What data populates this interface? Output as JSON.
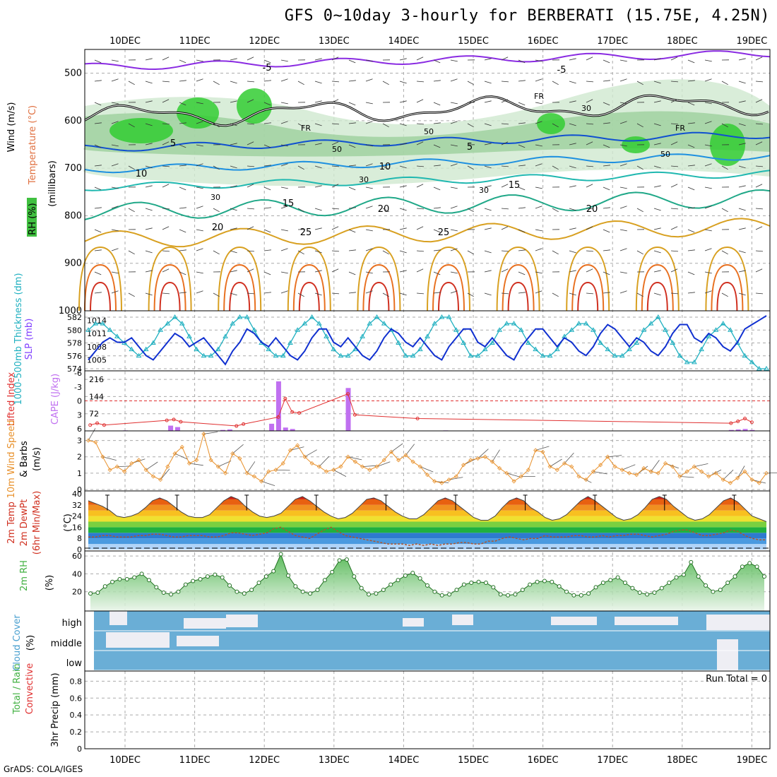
{
  "header": {
    "title": "GFS 0~10day 3-hourly for BERBERATI (15.75E, 4.25N)",
    "credit": "GrADS: COLA/IGES"
  },
  "colors": {
    "temp_line": "#f08a24",
    "dewpoint_line": "#b0552a",
    "wind_speed": "#e8902a",
    "cape_bar": "#c070f0",
    "lifted_index": "#e03030",
    "thickness": "#20b0c0",
    "slp": "#1030d0",
    "rh_green": "#40b040",
    "cloud_blue": "#6aaed6"
  },
  "chart_data": [
    {
      "panel": "cross-section",
      "type": "heatmap",
      "x_dates": [
        "10DEC",
        "11DEC",
        "12DEC",
        "13DEC",
        "14DEC",
        "15DEC",
        "16DEC",
        "17DEC",
        "18DEC",
        "19DEC"
      ],
      "ylabel": "(millibars)",
      "ylim": [
        1000,
        450
      ],
      "yticks": [
        500,
        600,
        700,
        800,
        900,
        1000
      ],
      "legend_labels": [
        "RH (%)",
        "Temperature (°C)",
        "Wind (m/s)"
      ],
      "isotherm_labels": [
        "-5",
        "5",
        "10",
        "15",
        "20",
        "25"
      ],
      "rh_labels": [
        "30",
        "50"
      ],
      "freezing_label": "FR"
    },
    {
      "panel": "thickness-slp",
      "type": "line",
      "legend_labels": [
        "1000-500mb Thickness (dm)",
        "SLP (mb)"
      ],
      "left_ticks": [
        "582",
        "580",
        "578",
        "576",
        "574"
      ],
      "right_ticks": [
        "1014",
        "1011",
        "1008",
        "1005"
      ],
      "series": [
        {
          "name": "Thickness",
          "values": [
            580,
            581,
            581,
            580,
            579,
            578,
            577,
            576,
            577,
            578,
            580,
            581,
            582,
            581,
            579,
            577,
            576,
            576,
            577,
            579,
            581,
            582,
            582,
            580,
            578,
            577,
            576,
            576,
            578,
            580,
            581,
            582,
            581,
            579,
            577,
            576,
            576,
            577,
            579,
            581,
            582,
            581,
            580,
            578,
            576,
            576,
            577,
            579,
            581,
            582,
            582,
            580,
            578,
            576,
            576,
            577,
            578,
            580,
            581,
            581,
            580,
            578,
            577,
            576,
            576,
            577,
            579,
            580,
            581,
            581,
            580,
            578,
            577,
            576,
            576,
            577,
            578,
            580,
            581,
            582,
            580,
            578,
            576,
            575,
            575,
            577,
            579,
            580,
            581,
            580,
            578,
            576,
            575,
            574,
            574
          ]
        },
        {
          "name": "SLP",
          "values": [
            1005,
            1007,
            1009,
            1010,
            1009,
            1009,
            1010,
            1008,
            1006,
            1005,
            1007,
            1009,
            1011,
            1010,
            1008,
            1009,
            1010,
            1008,
            1006,
            1004,
            1007,
            1009,
            1012,
            1011,
            1009,
            1008,
            1010,
            1008,
            1006,
            1005,
            1007,
            1010,
            1012,
            1012,
            1009,
            1008,
            1010,
            1008,
            1006,
            1005,
            1007,
            1010,
            1012,
            1011,
            1009,
            1008,
            1010,
            1008,
            1006,
            1005,
            1008,
            1010,
            1012,
            1012,
            1009,
            1008,
            1010,
            1008,
            1006,
            1005,
            1008,
            1010,
            1012,
            1012,
            1010,
            1008,
            1010,
            1009,
            1007,
            1006,
            1008,
            1011,
            1013,
            1012,
            1010,
            1008,
            1010,
            1009,
            1007,
            1006,
            1008,
            1011,
            1013,
            1013,
            1010,
            1009,
            1011,
            1010,
            1008,
            1007,
            1009,
            1012,
            1013,
            1014,
            1015
          ]
        }
      ]
    },
    {
      "panel": "stability",
      "type": "bar",
      "legend_labels": [
        "Lifted Index",
        "CAPE (J/kg)"
      ],
      "li_ticks": [
        "-6",
        "-3",
        "0",
        "3",
        "6"
      ],
      "cape_ticks": [
        "216",
        "144",
        "72"
      ],
      "cape_bars": [
        [
          0.5,
          2
        ],
        [
          1.15,
          22
        ],
        [
          1.25,
          16
        ],
        [
          1.9,
          4
        ],
        [
          2.0,
          6
        ],
        [
          2.6,
          30
        ],
        [
          2.7,
          208
        ],
        [
          2.8,
          14
        ],
        [
          2.9,
          8
        ],
        [
          3.7,
          180
        ],
        [
          5.1,
          2
        ],
        [
          9.2,
          4
        ],
        [
          9.3,
          6
        ],
        [
          9.4,
          8
        ],
        [
          9.5,
          4
        ]
      ],
      "li_points": [
        [
          0.0,
          5.2
        ],
        [
          0.1,
          4.8
        ],
        [
          0.2,
          5.2
        ],
        [
          1.1,
          4.2
        ],
        [
          1.2,
          4.0
        ],
        [
          1.3,
          4.5
        ],
        [
          2.1,
          5.4
        ],
        [
          2.2,
          5.0
        ],
        [
          2.7,
          3.5
        ],
        [
          2.8,
          -0.5
        ],
        [
          2.9,
          2.4
        ],
        [
          3.0,
          2.6
        ],
        [
          3.7,
          -1.5
        ],
        [
          3.8,
          3.0
        ],
        [
          4.7,
          3.8
        ],
        [
          9.2,
          4.8
        ],
        [
          9.3,
          4.4
        ],
        [
          9.4,
          3.8
        ],
        [
          9.5,
          4.6
        ]
      ]
    },
    {
      "panel": "wind",
      "type": "line",
      "legend_labels": [
        "10m Wind Speed",
        "& Barbs",
        "(m/s)"
      ],
      "yticks": [
        "0",
        "1",
        "2",
        "3"
      ],
      "series": [
        {
          "name": "Speed",
          "values": [
            3.0,
            2.9,
            2.0,
            1.2,
            1.4,
            1.1,
            1.6,
            1.8,
            1.2,
            0.8,
            0.6,
            1.4,
            2.2,
            2.6,
            1.6,
            1.8,
            3.4,
            1.8,
            1.4,
            1.0,
            2.2,
            1.9,
            1.0,
            0.8,
            0.5,
            1.1,
            1.2,
            1.6,
            2.4,
            2.7,
            2.0,
            1.6,
            1.4,
            1.1,
            1.2,
            1.4,
            2.0,
            1.7,
            1.4,
            1.2,
            1.4,
            1.8,
            2.3,
            1.8,
            2.1,
            1.7,
            1.4,
            0.9,
            0.5,
            0.4,
            0.6,
            0.8,
            1.5,
            1.8,
            1.9,
            2.0,
            1.7,
            1.3,
            1.0,
            0.5,
            0.8,
            1.2,
            2.4,
            2.3,
            1.4,
            1.2,
            1.6,
            1.4,
            0.8,
            0.6,
            1.1,
            1.5,
            2.0,
            1.4,
            1.2,
            1.0,
            0.9,
            1.3,
            1.1,
            1.0,
            1.6,
            1.4,
            0.8,
            1.1,
            1.4,
            1.1,
            0.8,
            1.0,
            0.6,
            0.4,
            0.7,
            1.1,
            0.6,
            0.4,
            1.0
          ]
        }
      ]
    },
    {
      "panel": "temperature",
      "type": "area",
      "legend_labels": [
        "2m Temp",
        "2m DewPt",
        "(6hr Min/Max)",
        "(°C)"
      ],
      "yticks": [
        "40",
        "32",
        "24",
        "16",
        "8",
        "0"
      ],
      "series": [
        {
          "name": "Temp",
          "values": [
            35,
            33,
            31,
            28,
            24,
            23,
            24,
            26,
            30,
            35,
            37,
            35,
            31,
            27,
            24,
            23,
            23,
            25,
            30,
            35,
            38,
            36,
            31,
            27,
            24,
            23,
            24,
            26,
            31,
            36,
            38,
            35,
            31,
            27,
            24,
            22,
            23,
            26,
            31,
            36,
            37,
            35,
            31,
            27,
            24,
            22,
            22,
            25,
            30,
            35,
            37,
            35,
            31,
            27,
            23,
            21,
            21,
            24,
            30,
            35,
            37,
            35,
            30,
            27,
            23,
            21,
            22,
            25,
            30,
            35,
            38,
            35,
            31,
            27,
            23,
            21,
            22,
            25,
            30,
            36,
            38,
            36,
            31,
            27,
            23,
            21,
            22,
            25,
            30,
            35,
            37,
            34,
            29,
            24,
            22,
            20
          ]
        },
        {
          "name": "DewPt",
          "values": [
            9,
            9,
            10,
            10,
            9,
            9,
            9,
            10,
            10,
            11,
            11,
            10,
            9,
            9,
            10,
            10,
            10,
            9,
            9,
            10,
            12,
            12,
            11,
            10,
            11,
            12,
            15,
            16,
            13,
            10,
            9,
            8,
            11,
            14,
            16,
            13,
            10,
            9,
            8,
            7,
            6,
            5,
            4,
            4,
            4,
            3,
            4,
            3,
            4,
            3,
            4,
            4,
            5,
            5,
            4,
            4,
            6,
            6,
            8,
            9,
            8,
            7,
            8,
            8,
            10,
            9,
            9,
            9,
            10,
            10,
            9,
            9,
            10,
            9,
            10,
            10,
            11,
            11,
            10,
            9,
            10,
            11,
            13,
            14,
            14,
            12,
            10,
            10,
            11,
            12,
            14,
            13,
            10,
            8,
            7,
            7
          ]
        }
      ]
    },
    {
      "panel": "rh",
      "type": "area",
      "legend_labels": [
        "2m RH",
        "(%)"
      ],
      "yticks": [
        "60",
        "40",
        "20"
      ],
      "series": [
        {
          "name": "RH",
          "values": [
            18,
            19,
            26,
            31,
            34,
            34,
            36,
            40,
            33,
            25,
            19,
            17,
            20,
            28,
            32,
            34,
            37,
            39,
            36,
            27,
            20,
            18,
            22,
            30,
            37,
            43,
            62,
            38,
            26,
            20,
            18,
            22,
            33,
            42,
            55,
            56,
            37,
            24,
            17,
            18,
            22,
            28,
            33,
            38,
            41,
            35,
            27,
            20,
            16,
            17,
            22,
            28,
            30,
            31,
            30,
            25,
            17,
            16,
            17,
            22,
            28,
            31,
            32,
            31,
            26,
            20,
            16,
            16,
            18,
            25,
            30,
            33,
            36,
            30,
            24,
            19,
            17,
            19,
            24,
            30,
            36,
            39,
            53,
            37,
            27,
            20,
            22,
            30,
            37,
            48,
            52,
            48,
            37
          ]
        }
      ]
    },
    {
      "panel": "cloud",
      "type": "heatmap",
      "legend_labels": [
        "Cloud Cover",
        "(%)"
      ],
      "layers": [
        "high",
        "middle",
        "low"
      ]
    },
    {
      "panel": "precip",
      "type": "bar",
      "legend_labels": [
        "Total / Rain",
        "Convective",
        "3hr Precip (mm)"
      ],
      "yticks": [
        "0.8",
        "0.6",
        "0.4",
        "0.2",
        "0"
      ],
      "run_total_label": "Run Total = 0",
      "values": []
    }
  ]
}
